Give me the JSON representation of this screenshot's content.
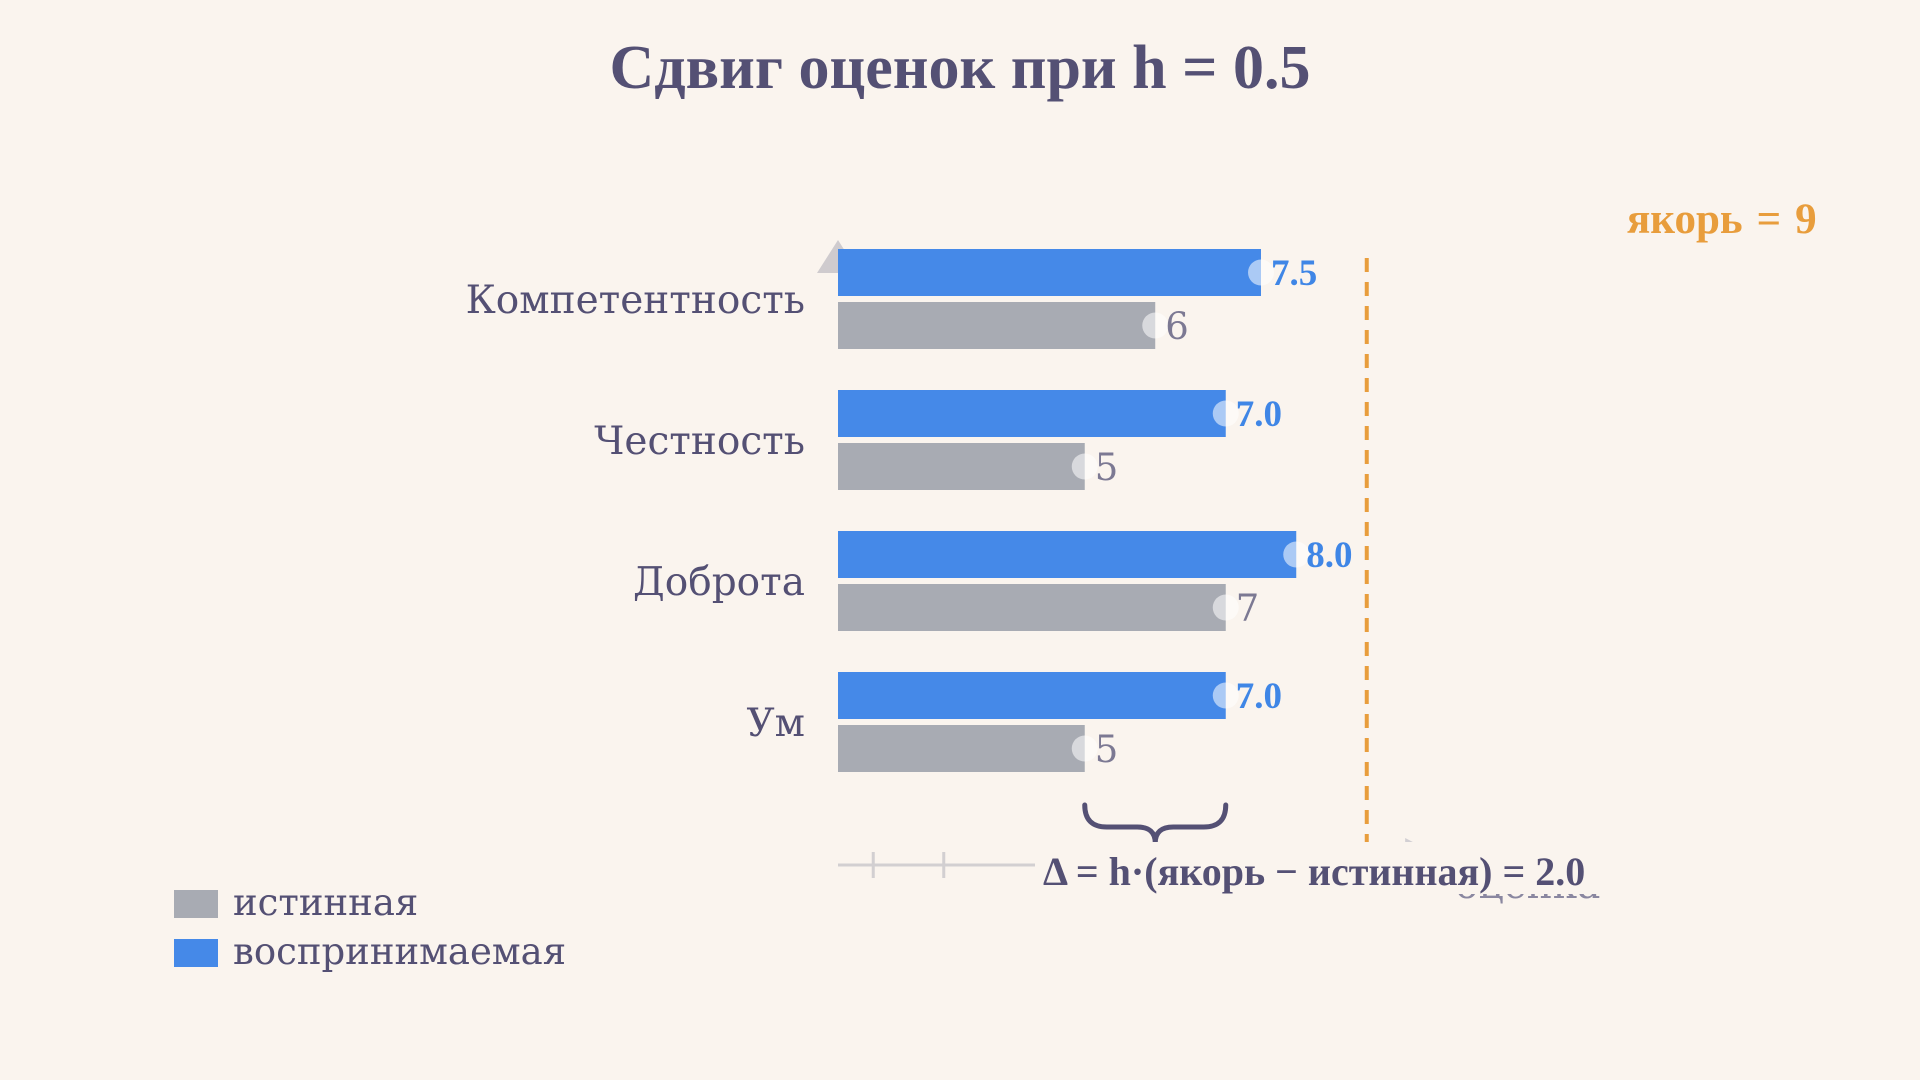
{
  "title": "Сдвиг оценок при h = 0.5",
  "chart_data": {
    "type": "bar",
    "orientation": "horizontal",
    "title": "Сдвиг оценок при h = 0.5",
    "categories": [
      "Компетентность",
      "Честность",
      "Доброта",
      "Ум"
    ],
    "series": [
      {
        "name": "воспринимаемая",
        "values": [
          7.5,
          7.0,
          8.0,
          7.0
        ],
        "labels": [
          "7.5",
          "7.0",
          "8.0",
          "7.0"
        ],
        "color": "#4589e8"
      },
      {
        "name": "истинная",
        "values": [
          6,
          5,
          7,
          5
        ],
        "labels": [
          "6",
          "5",
          "7",
          "5"
        ],
        "color": "#a8abb3"
      }
    ],
    "xlabel": "оценка",
    "anchor": {
      "label": "якорь",
      "eq": "=",
      "value": 9,
      "value_label": "9",
      "color": "#e89d3c"
    },
    "annotation": {
      "text": "Δ = h·(якорь − истинная) = 2.0",
      "bracket_from": 5,
      "bracket_to": 7
    },
    "legend": {
      "position": "bottom-left",
      "items": [
        {
          "label": "истинная",
          "color": "#a8abb3"
        },
        {
          "label": "воспринимаемая",
          "color": "#4589e8"
        }
      ]
    },
    "grid": false
  }
}
